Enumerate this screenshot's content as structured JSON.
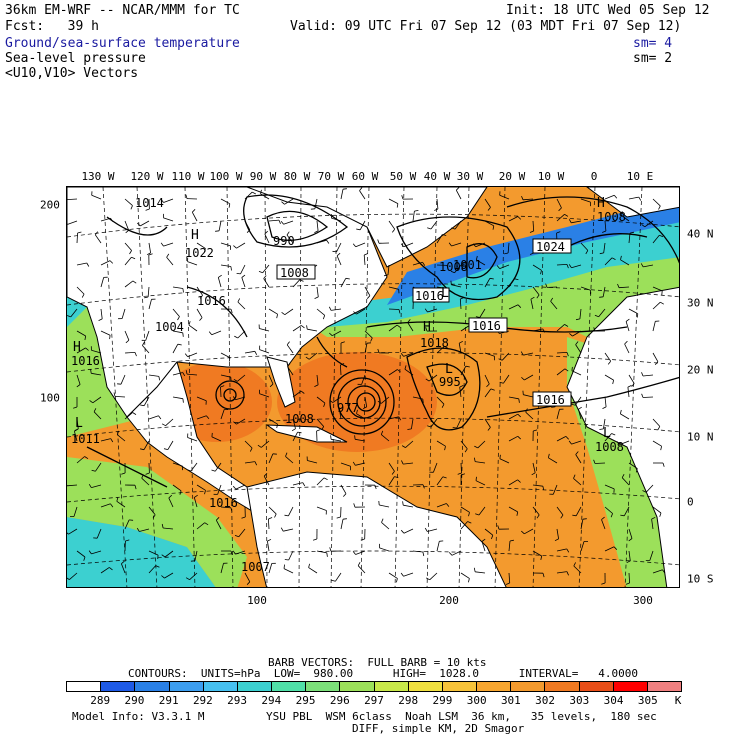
{
  "header": {
    "model_title": "36km EM-WRF -- NCAR/MMM for TC",
    "init": "Init: 18 UTC Wed 05 Sep 12",
    "fcst": "Fcst:   39 h",
    "valid": "Valid: 09 UTC Fri 07 Sep 12 (03 MDT Fri 07 Sep 12)",
    "field1": "Ground/sea-surface temperature",
    "field1_sm": "sm= 4",
    "field2": "Sea-level pressure",
    "field2_sm": "sm= 2",
    "field3": "<U10,V10> Vectors"
  },
  "map": {
    "lon_labels": [
      "130 W",
      "120 W",
      "110 W",
      "100 W",
      "90 W",
      "80 W",
      "70 W",
      "60 W",
      "50 W",
      "40 W",
      "30 W",
      "20 W",
      "10 W",
      "0",
      "10 E"
    ],
    "lat_labels": [
      "40 N",
      "30 N",
      "20 N",
      "10 N",
      "0",
      "10 S"
    ],
    "left_ticks": [
      "200",
      "100"
    ],
    "bottom_ticks": [
      "100",
      "200",
      "300"
    ],
    "pressure_labels": [
      "1014",
      "990",
      "1008",
      "1022",
      "1004",
      "1016",
      "1011",
      "1016",
      "1008",
      "1016",
      "1018",
      "995",
      "977",
      "1001",
      "1016",
      "1024",
      "1008",
      "1008",
      "1007",
      "1016",
      "1008",
      "1016"
    ],
    "colors": {
      "land": "#ffffff",
      "sea_warm": "#f39a2e",
      "sea_warm2": "#f07a22",
      "sea_mid": "#f7c33a",
      "sea_green": "#9ce05a",
      "sea_cyan": "#3cd0d0",
      "sea_blue": "#2a80e6"
    }
  },
  "barb_info": {
    "line1": "BARB VECTORS:  FULL BARB = 10 kts",
    "contours": "CONTOURS:  UNITS=hPa  LOW=  980.00      HIGH=  1028.0      INTERVAL=   4.0000"
  },
  "colorbar": {
    "labels": [
      "289",
      "290",
      "291",
      "292",
      "293",
      "294",
      "295",
      "296",
      "297",
      "298",
      "299",
      "300",
      "301",
      "302",
      "303",
      "304",
      "305"
    ],
    "unit": "K",
    "colors": [
      "#ffffff",
      "#1e5ae6",
      "#2a80e6",
      "#3c9ef0",
      "#46c0f0",
      "#3cd0d0",
      "#50e0a8",
      "#7ce07a",
      "#9ce05a",
      "#c8e84a",
      "#f0e040",
      "#f7c33a",
      "#f7a630",
      "#f39a2e",
      "#f07a22",
      "#e84e18",
      "#ff0000",
      "#f08080"
    ]
  },
  "footer": {
    "model_info": "Model Info: V3.3.1 M",
    "physics": "YSU PBL  WSM 6class  Noah LSM  36 km,   35 levels,  180 sec",
    "diff": "DIFF, simple KM, 2D Smagor"
  }
}
